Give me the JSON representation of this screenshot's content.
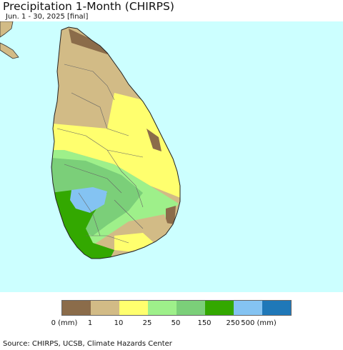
{
  "title": "Precipitation 1-Month (CHIRPS)",
  "subtitle": "Jun. 1 - 30, 2025 [final]",
  "source": "Source: CHIRPS, UCSB, Climate Hazards Center",
  "legend": {
    "colors": [
      "#8b6c4a",
      "#d2bb86",
      "#ffff6e",
      "#9ef08a",
      "#7bcf79",
      "#33a800",
      "#84c3f2",
      "#1f78b8"
    ],
    "tick_labels": [
      "0 (mm)",
      "1",
      "10",
      "25",
      "50",
      "150",
      "250",
      "500 (mm)"
    ]
  },
  "map": {
    "ocean_color": "#ccffff",
    "land_color": "#d2bb86"
  }
}
